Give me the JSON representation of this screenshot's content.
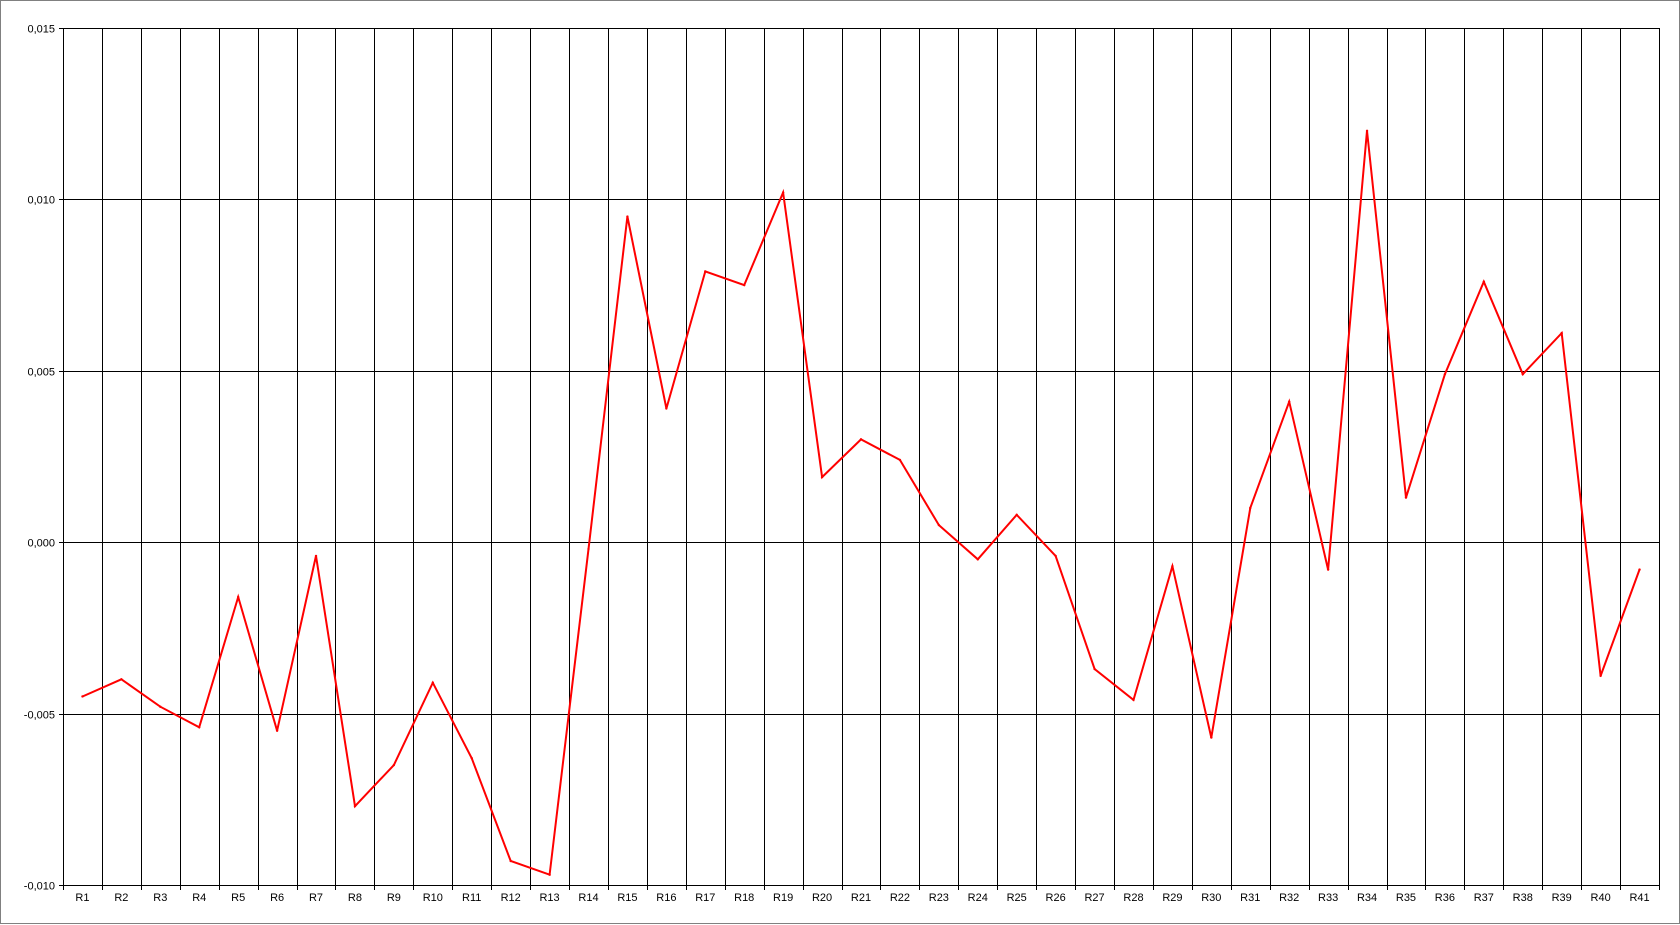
{
  "chart_data": {
    "type": "line",
    "title": "",
    "xlabel": "",
    "ylabel": "",
    "categories": [
      "R1",
      "R2",
      "R3",
      "R4",
      "R5",
      "R6",
      "R7",
      "R8",
      "R9",
      "R10",
      "R11",
      "R12",
      "R13",
      "R14",
      "R15",
      "R16",
      "R17",
      "R18",
      "R19",
      "R20",
      "R21",
      "R22",
      "R23",
      "R24",
      "R25",
      "R26",
      "R27",
      "R28",
      "R29",
      "R30",
      "R31",
      "R32",
      "R33",
      "R34",
      "R35",
      "R36",
      "R37",
      "R38",
      "R39",
      "R40",
      "R41"
    ],
    "series": [
      {
        "color": "#ff0000",
        "values": [
          -0.0045,
          -0.004,
          -0.0048,
          -0.0054,
          -0.0016,
          -0.0055,
          -0.0004,
          -0.0077,
          -0.0065,
          -0.0041,
          -0.0063,
          -0.0093,
          -0.0097,
          -0.0002,
          0.0095,
          0.0039,
          0.0079,
          0.0075,
          0.0102,
          0.0019,
          0.003,
          0.0024,
          0.0005,
          -0.0005,
          0.0008,
          -0.0004,
          -0.0037,
          -0.0046,
          -0.0007,
          -0.0057,
          0.001,
          0.0041,
          -0.0008,
          0.012,
          0.0013,
          0.0049,
          0.0076,
          0.0049,
          0.0061,
          -0.0039,
          -0.0008
        ]
      }
    ],
    "ylim": [
      -0.01,
      0.015
    ],
    "yticks": [
      -0.01,
      -0.005,
      0.0,
      0.005,
      0.01,
      0.015
    ],
    "ytick_labels": [
      "-0,010",
      "-0,005",
      "0,000",
      "0,005",
      "0,010",
      "0,015"
    ],
    "grid": true,
    "legend": "none",
    "gridline_color": "#000000",
    "background_color": "#ffffff"
  }
}
